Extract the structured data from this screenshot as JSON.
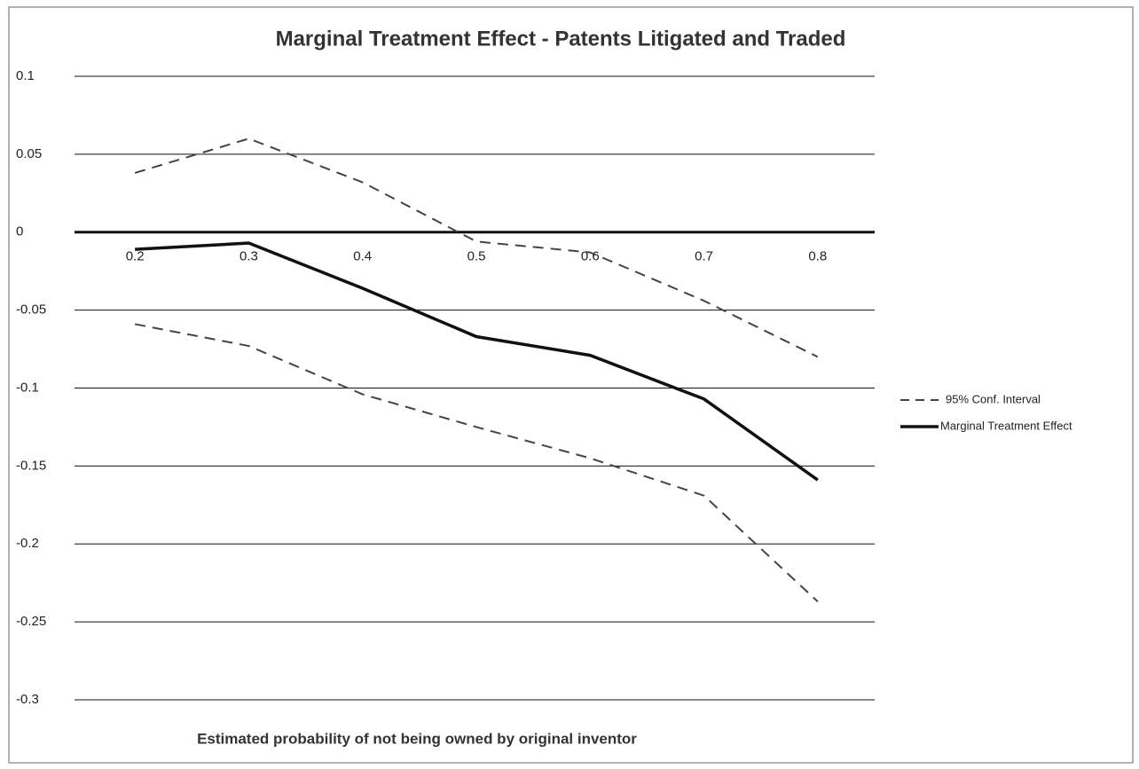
{
  "chart_data": {
    "type": "line",
    "title": "Marginal Treatment Effect - Patents Litigated and Traded",
    "x_label": "Estimated probability of not being owned by original inventor",
    "categories": [
      "0.2",
      "0.3",
      "0.4",
      "0.5",
      "0.6",
      "0.7",
      "0.8"
    ],
    "series": [
      {
        "name": "95% Conf. Interval",
        "color": "#444444",
        "dashed": true,
        "values": [
          0.038,
          0.06,
          0.032,
          -0.006,
          -0.013,
          -0.044,
          -0.08
        ],
        "lower": [
          -0.059,
          -0.073,
          -0.104,
          -0.125,
          -0.145,
          -0.169,
          -0.237
        ]
      },
      {
        "name": "Marginal Treatment Effect",
        "color": "#111111",
        "dashed": false,
        "values": [
          -0.011,
          -0.007,
          -0.036,
          -0.067,
          -0.079,
          -0.107,
          -0.159
        ]
      }
    ],
    "ylim": [
      -0.3,
      0.1
    ],
    "yticks": [
      0.1,
      0.05,
      0,
      -0.05,
      -0.1,
      -0.15,
      -0.2,
      -0.25,
      -0.3
    ],
    "grid": true,
    "legend": "right"
  }
}
